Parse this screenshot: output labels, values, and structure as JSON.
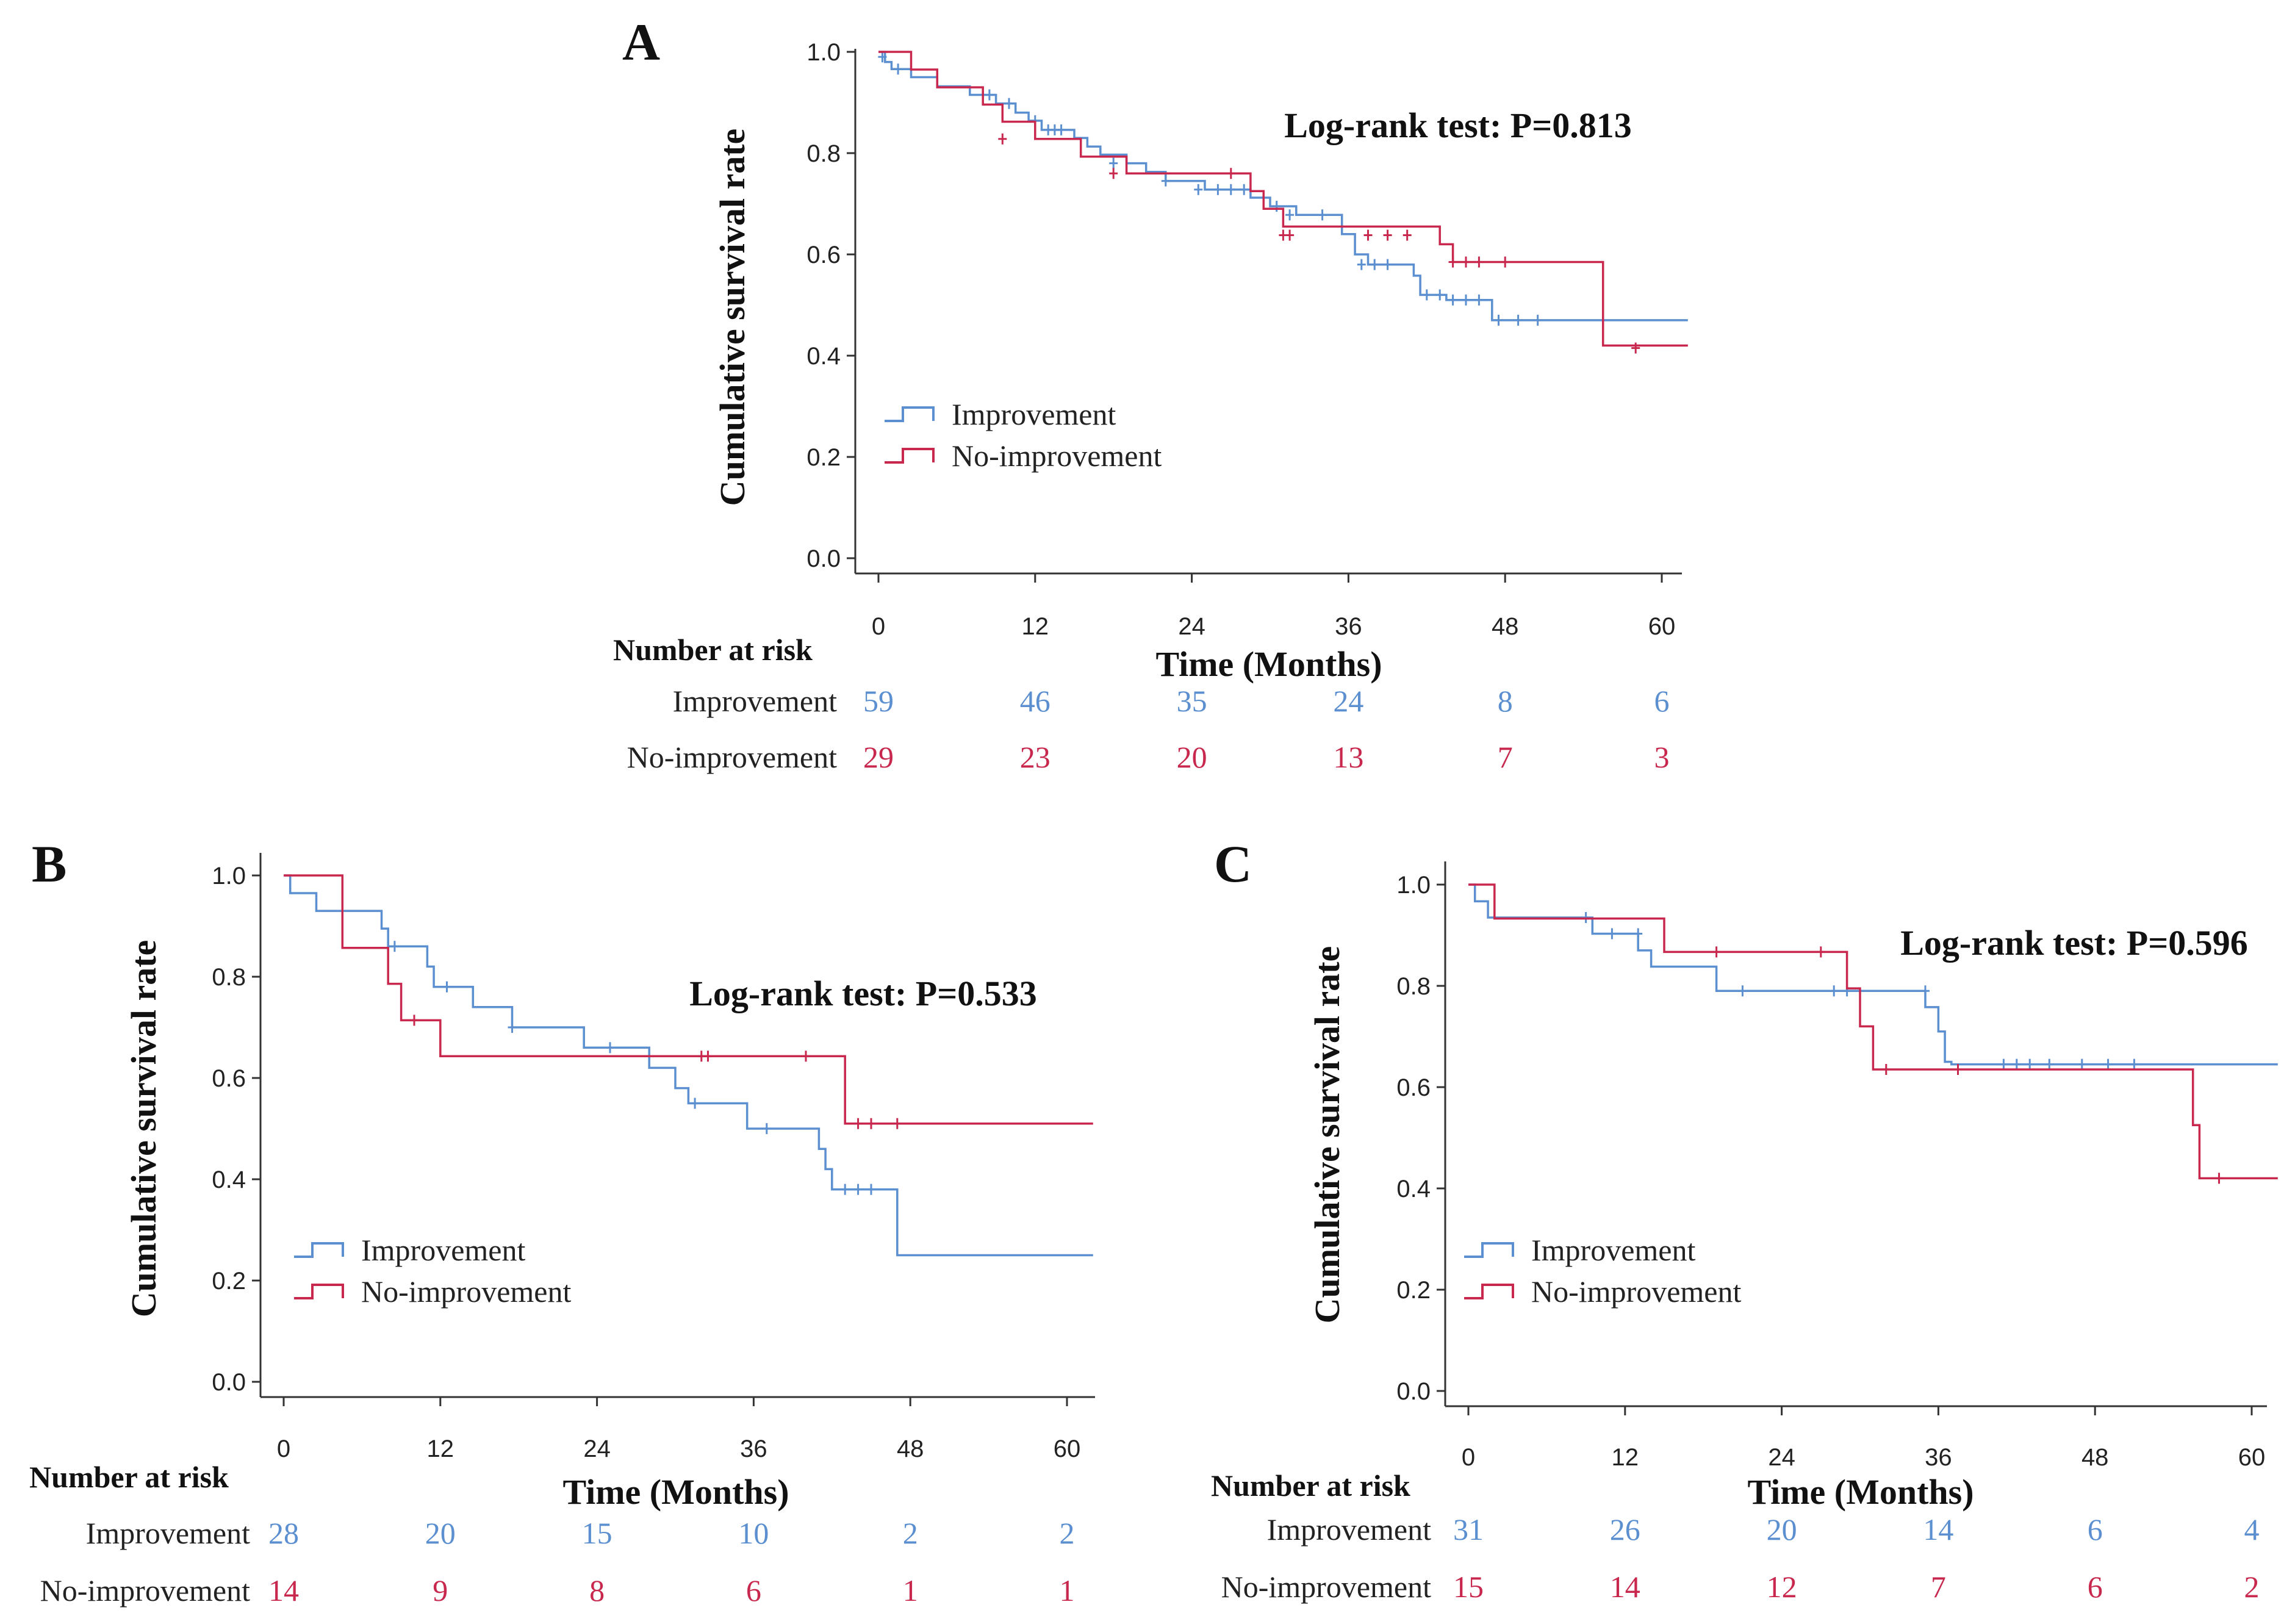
{
  "colors": {
    "improvement": "#5b8fcf",
    "no_improvement": "#c8284e",
    "axis": "#333333"
  },
  "chart_data": [
    {
      "type": "line",
      "panel_label": "A",
      "ylabel": "Cumulative survival rate",
      "xlabel": "Time (Months)",
      "annotation": "Log-rank test: P=0.813",
      "x_ticks": [
        "0",
        "12",
        "24",
        "36",
        "48",
        "60"
      ],
      "y_ticks": [
        "0.0",
        "0.2",
        "0.4",
        "0.6",
        "0.8",
        "1.0"
      ],
      "xlim": [
        -2,
        62
      ],
      "ylim": [
        0,
        1
      ],
      "legend": [
        "Improvement",
        "No-improvement"
      ],
      "risk_table": {
        "title": "Number at risk",
        "rows": [
          {
            "label": "Improvement",
            "values": [
              "59",
              "46",
              "35",
              "24",
              "8",
              "6"
            ]
          },
          {
            "label": "No-improvement",
            "values": [
              "29",
              "23",
              "20",
              "13",
              "7",
              "3"
            ]
          }
        ]
      },
      "series": [
        {
          "name": "Improvement",
          "key": "improvement",
          "steps": [
            [
              0,
              1
            ],
            [
              0.5,
              0.98
            ],
            [
              1,
              0.966
            ],
            [
              2.5,
              0.95
            ],
            [
              4.5,
              0.932
            ],
            [
              7,
              0.915
            ],
            [
              9,
              0.898
            ],
            [
              10.5,
              0.88
            ],
            [
              11.5,
              0.864
            ],
            [
              12.5,
              0.846
            ],
            [
              15,
              0.83
            ],
            [
              16,
              0.813
            ],
            [
              17,
              0.797
            ],
            [
              19,
              0.78
            ],
            [
              20.5,
              0.763
            ],
            [
              22,
              0.745
            ],
            [
              25,
              0.728
            ],
            [
              28.5,
              0.712
            ],
            [
              30,
              0.695
            ],
            [
              32,
              0.678
            ],
            [
              35.5,
              0.64
            ],
            [
              36.5,
              0.6
            ],
            [
              37.5,
              0.58
            ],
            [
              41,
              0.558
            ],
            [
              41.5,
              0.52
            ],
            [
              43.5,
              0.51
            ],
            [
              47,
              0.47
            ],
            [
              62,
              0.47
            ]
          ],
          "censors": [
            [
              0.3,
              0.99
            ],
            [
              1.5,
              0.966
            ],
            [
              8.5,
              0.915
            ],
            [
              10,
              0.898
            ],
            [
              12,
              0.864
            ],
            [
              13,
              0.846
            ],
            [
              13.5,
              0.846
            ],
            [
              14,
              0.846
            ],
            [
              18,
              0.78
            ],
            [
              22,
              0.745
            ],
            [
              24.5,
              0.728
            ],
            [
              26,
              0.728
            ],
            [
              27,
              0.728
            ],
            [
              28,
              0.728
            ],
            [
              30.5,
              0.695
            ],
            [
              31.5,
              0.678
            ],
            [
              34,
              0.678
            ],
            [
              37,
              0.58
            ],
            [
              38,
              0.58
            ],
            [
              39,
              0.58
            ],
            [
              42,
              0.52
            ],
            [
              43,
              0.52
            ],
            [
              44,
              0.51
            ],
            [
              45,
              0.51
            ],
            [
              46,
              0.51
            ],
            [
              47.5,
              0.47
            ],
            [
              49,
              0.47
            ],
            [
              50.5,
              0.47
            ]
          ]
        },
        {
          "name": "No-improvement",
          "key": "no_improvement",
          "steps": [
            [
              0,
              1
            ],
            [
              2.5,
              0.965
            ],
            [
              4.5,
              0.93
            ],
            [
              8,
              0.896
            ],
            [
              9.5,
              0.862
            ],
            [
              12,
              0.828
            ],
            [
              15.5,
              0.793
            ],
            [
              19,
              0.76
            ],
            [
              28.5,
              0.725
            ],
            [
              29.5,
              0.69
            ],
            [
              31,
              0.655
            ],
            [
              36,
              0.655
            ],
            [
              43,
              0.62
            ],
            [
              44,
              0.585
            ],
            [
              55.5,
              0.58
            ],
            [
              55.5,
              0.42
            ],
            [
              62,
              0.42
            ]
          ],
          "censors": [
            [
              9.5,
              0.828
            ],
            [
              18,
              0.76
            ],
            [
              27,
              0.76
            ],
            [
              31,
              0.638
            ],
            [
              31.5,
              0.638
            ],
            [
              37.5,
              0.638
            ],
            [
              39,
              0.638
            ],
            [
              40.5,
              0.638
            ],
            [
              44,
              0.585
            ],
            [
              45,
              0.585
            ],
            [
              46,
              0.585
            ],
            [
              48,
              0.585
            ],
            [
              58,
              0.415
            ]
          ]
        }
      ]
    },
    {
      "type": "line",
      "panel_label": "B",
      "ylabel": "Cumulative survival rate",
      "xlabel": "Time (Months)",
      "annotation": "Log-rank test: P=0.533",
      "x_ticks": [
        "0",
        "12",
        "24",
        "36",
        "48",
        "60"
      ],
      "y_ticks": [
        "0.0",
        "0.2",
        "0.4",
        "0.6",
        "0.8",
        "1.0"
      ],
      "xlim": [
        -2,
        62
      ],
      "ylim": [
        0,
        1
      ],
      "legend": [
        "Improvement",
        "No-improvement"
      ],
      "risk_table": {
        "title": "Number at risk",
        "rows": [
          {
            "label": "Improvement",
            "values": [
              "28",
              "20",
              "15",
              "10",
              "2",
              "2"
            ]
          },
          {
            "label": "No-improvement",
            "values": [
              "14",
              "9",
              "8",
              "6",
              "1",
              "1"
            ]
          }
        ]
      },
      "series": [
        {
          "name": "Improvement",
          "key": "improvement",
          "steps": [
            [
              0,
              1
            ],
            [
              0.5,
              0.965
            ],
            [
              2.5,
              0.93
            ],
            [
              7.5,
              0.895
            ],
            [
              8,
              0.86
            ],
            [
              11,
              0.82
            ],
            [
              11.5,
              0.78
            ],
            [
              14.5,
              0.74
            ],
            [
              17.5,
              0.7
            ],
            [
              23,
              0.66
            ],
            [
              28,
              0.62
            ],
            [
              30,
              0.58
            ],
            [
              31,
              0.55
            ],
            [
              35.5,
              0.5
            ],
            [
              41,
              0.46
            ],
            [
              41.5,
              0.42
            ],
            [
              42,
              0.38
            ],
            [
              47,
              0.25
            ],
            [
              62,
              0.25
            ]
          ],
          "censors": [
            [
              8.5,
              0.86
            ],
            [
              12.5,
              0.78
            ],
            [
              17.5,
              0.7
            ],
            [
              25,
              0.66
            ],
            [
              31.5,
              0.55
            ],
            [
              37,
              0.5
            ],
            [
              43,
              0.38
            ],
            [
              44,
              0.38
            ],
            [
              45,
              0.38
            ]
          ]
        },
        {
          "name": "No-improvement",
          "key": "no_improvement",
          "steps": [
            [
              0,
              1
            ],
            [
              4.5,
              0.93
            ],
            [
              4.5,
              0.857
            ],
            [
              8,
              0.786
            ],
            [
              9,
              0.714
            ],
            [
              12,
              0.643
            ],
            [
              43,
              0.643
            ],
            [
              43,
              0.51
            ],
            [
              62,
              0.51
            ]
          ],
          "censors": [
            [
              10,
              0.714
            ],
            [
              32,
              0.643
            ],
            [
              32.5,
              0.643
            ],
            [
              40,
              0.643
            ],
            [
              44,
              0.51
            ],
            [
              45,
              0.51
            ],
            [
              47,
              0.51
            ]
          ]
        }
      ]
    },
    {
      "type": "line",
      "panel_label": "C",
      "ylabel": "Cumulative survival rate",
      "xlabel": "Time (Months)",
      "annotation": "Log-rank test: P=0.596",
      "x_ticks": [
        "0",
        "12",
        "24",
        "36",
        "48",
        "60"
      ],
      "y_ticks": [
        "0.0",
        "0.2",
        "0.4",
        "0.6",
        "0.8",
        "1.0"
      ],
      "xlim": [
        -2,
        62
      ],
      "ylim": [
        0,
        1
      ],
      "legend": [
        "Improvement",
        "No-improvement"
      ],
      "risk_table": {
        "title": "Number at risk",
        "rows": [
          {
            "label": "Improvement",
            "values": [
              "31",
              "26",
              "20",
              "14",
              "6",
              "4"
            ]
          },
          {
            "label": "No-improvement",
            "values": [
              "15",
              "14",
              "12",
              "7",
              "6",
              "2"
            ]
          }
        ]
      },
      "series": [
        {
          "name": "Improvement",
          "key": "improvement",
          "steps": [
            [
              0,
              1
            ],
            [
              0.5,
              0.967
            ],
            [
              1.5,
              0.935
            ],
            [
              9.5,
              0.903
            ],
            [
              13,
              0.87
            ],
            [
              14,
              0.838
            ],
            [
              19,
              0.79
            ],
            [
              35,
              0.758
            ],
            [
              36,
              0.71
            ],
            [
              36.5,
              0.65
            ],
            [
              37,
              0.645
            ],
            [
              62,
              0.645
            ]
          ],
          "censors": [
            [
              9,
              0.935
            ],
            [
              11,
              0.903
            ],
            [
              13,
              0.903
            ],
            [
              21,
              0.79
            ],
            [
              28,
              0.79
            ],
            [
              29,
              0.79
            ],
            [
              35,
              0.79
            ],
            [
              41,
              0.645
            ],
            [
              42,
              0.645
            ],
            [
              43,
              0.645
            ],
            [
              44.5,
              0.645
            ],
            [
              47,
              0.645
            ],
            [
              49,
              0.645
            ],
            [
              51,
              0.645
            ]
          ]
        },
        {
          "name": "No-improvement",
          "key": "no_improvement",
          "steps": [
            [
              0,
              1
            ],
            [
              2,
              0.933
            ],
            [
              15,
              0.867
            ],
            [
              29,
              0.795
            ],
            [
              30,
              0.72
            ],
            [
              31,
              0.635
            ],
            [
              55,
              0.635
            ],
            [
              55.5,
              0.525
            ],
            [
              56,
              0.42
            ],
            [
              62,
              0.42
            ]
          ],
          "censors": [
            [
              19,
              0.867
            ],
            [
              27,
              0.867
            ],
            [
              32,
              0.635
            ],
            [
              37.5,
              0.635
            ],
            [
              57.5,
              0.42
            ]
          ]
        }
      ]
    }
  ]
}
